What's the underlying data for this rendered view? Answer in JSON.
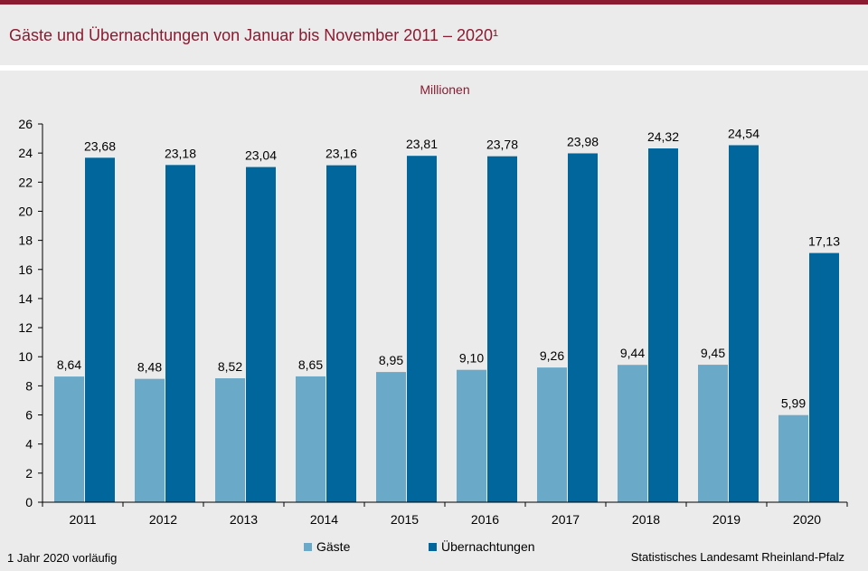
{
  "header": {
    "title": "Gäste und Übernachtungen von Januar bis November 2011 – 2020¹"
  },
  "chart_data": {
    "type": "bar",
    "title": "Gäste und Übernachtungen von Januar bis November 2011 – 2020¹",
    "unit_label": "Millionen",
    "xlabel": "",
    "ylabel": "",
    "categories": [
      "2011",
      "2012",
      "2013",
      "2014",
      "2015",
      "2016",
      "2017",
      "2018",
      "2019",
      "2020"
    ],
    "series": [
      {
        "name": "Gäste",
        "color": "#6aa9c8",
        "values": [
          8.64,
          8.48,
          8.52,
          8.65,
          8.95,
          9.1,
          9.26,
          9.44,
          9.45,
          5.99
        ],
        "labels": [
          "8,64",
          "8,48",
          "8,52",
          "8,65",
          "8,95",
          "9,10",
          "9,26",
          "9,44",
          "9,45",
          "5,99"
        ]
      },
      {
        "name": "Übernachtungen",
        "color": "#00669b",
        "values": [
          23.68,
          23.18,
          23.04,
          23.16,
          23.81,
          23.78,
          23.98,
          24.32,
          24.54,
          17.13
        ],
        "labels": [
          "23,68",
          "23,18",
          "23,04",
          "23,16",
          "23,81",
          "23,78",
          "23,98",
          "24,32",
          "24,54",
          "17,13"
        ]
      }
    ],
    "ylim": [
      0,
      26
    ],
    "yticks": [
      0,
      2,
      4,
      6,
      8,
      10,
      12,
      14,
      16,
      18,
      20,
      22,
      24,
      26
    ],
    "grid": false,
    "legend_position": "bottom-center"
  },
  "legend": {
    "items": [
      {
        "label": "Gäste",
        "color": "#6aa9c8"
      },
      {
        "label": "Übernachtungen",
        "color": "#00669b"
      }
    ]
  },
  "footer": {
    "footnote": "1 Jahr 2020 vorläufig",
    "source": "Statistisches Landesamt Rheinland-Pfalz"
  }
}
